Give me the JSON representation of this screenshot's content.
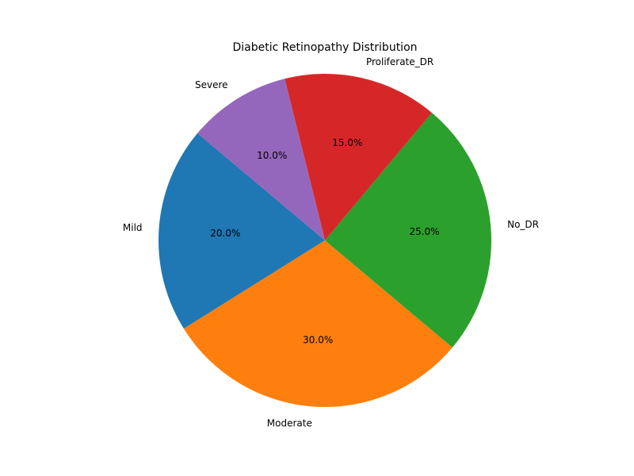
{
  "chart_data": {
    "type": "pie",
    "title": "Diabetic Retinopathy Distribution",
    "categories": [
      "Mild",
      "Moderate",
      "No_DR",
      "Proliferate_DR",
      "Severe"
    ],
    "values": [
      20.0,
      30.0,
      25.0,
      15.0,
      10.0
    ],
    "percent_labels": [
      "20.0%",
      "30.0%",
      "25.0%",
      "15.0%",
      "10.0%"
    ],
    "colors": [
      "#1f77b4",
      "#ff7f0e",
      "#2ca02c",
      "#d62728",
      "#9467bd"
    ],
    "start_angle_deg": 140,
    "direction": "counterclockwise",
    "legend": "none"
  }
}
